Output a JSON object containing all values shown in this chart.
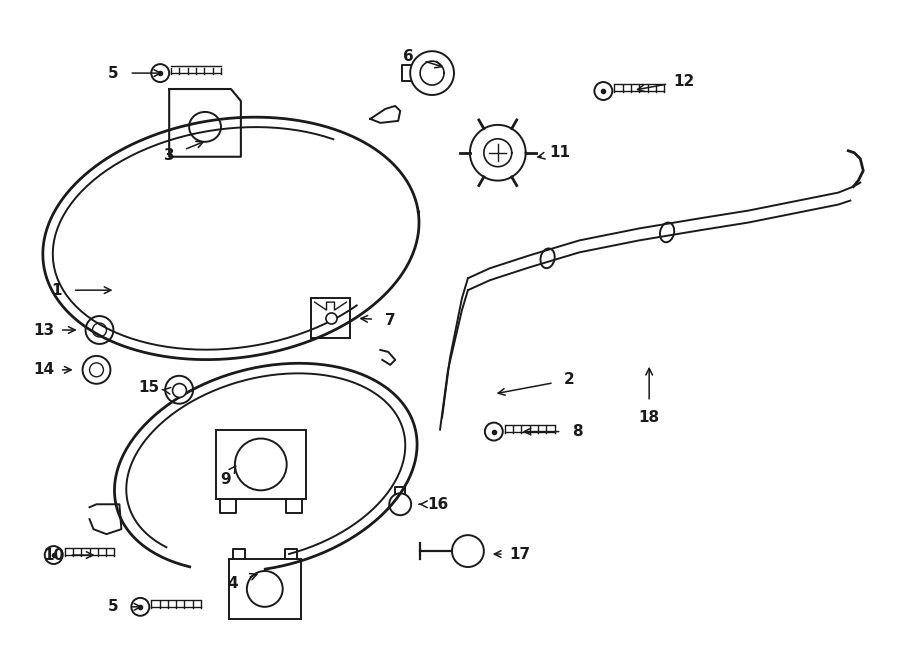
{
  "bg_color": "#ffffff",
  "line_color": "#1a1a1a",
  "figsize": [
    9.0,
    6.62
  ],
  "dpi": 100
}
